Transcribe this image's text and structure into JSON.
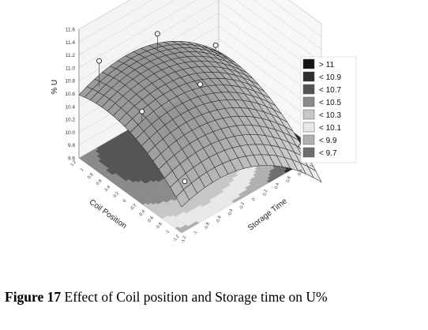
{
  "chart_data": {
    "type": "surface3d",
    "title": "",
    "xlabel": "Coil Position",
    "ylabel": "Storage Time",
    "zlabel": "% U",
    "x_ticks": [
      "1.2",
      "1",
      "0.8",
      "0.6",
      "0.4",
      "0.2",
      "0",
      "-0.2",
      "-0.4",
      "-0.6",
      "-0.8",
      "-1",
      "-1.2"
    ],
    "y_ticks": [
      "-1.2",
      "-1",
      "-0.8",
      "-0.6",
      "-0.4",
      "-0.2",
      "0",
      "0.2",
      "0.4",
      "0.6",
      "0.8",
      "1",
      "1.2"
    ],
    "z_ticks": [
      "9.6",
      "9.8",
      "10.0",
      "10.2",
      "10.4",
      "10.6",
      "10.8",
      "11.0",
      "11.2",
      "11.4",
      "11.6"
    ],
    "zlim": [
      9.6,
      11.6
    ],
    "grid": true,
    "legend": {
      "placement": "right",
      "entries": [
        {
          "label": "> 11",
          "color": "#151515"
        },
        {
          "label": "< 10.9",
          "color": "#2e2e2e"
        },
        {
          "label": "< 10.7",
          "color": "#545454"
        },
        {
          "label": "< 10.5",
          "color": "#8a8a8a"
        },
        {
          "label": "< 10.3",
          "color": "#c6c6c6"
        },
        {
          "label": "< 10.1",
          "color": "#e8e8e8"
        },
        {
          "label": "< 9.9",
          "color": "#b0b0b0"
        },
        {
          "label": "< 9.7",
          "color": "#6e6e6e"
        }
      ]
    },
    "design_points": [
      {
        "coil": -1,
        "storage": -1,
        "u": 11.1
      },
      {
        "coil": 1,
        "storage": -1,
        "u": 10.2
      },
      {
        "coil": -1,
        "storage": 1,
        "u": 10.3
      },
      {
        "coil": 1,
        "storage": 1,
        "u": 9.7
      },
      {
        "coil": 0,
        "storage": 0,
        "u": 10.7
      },
      {
        "coil": -1,
        "storage": 0,
        "u": 11.0
      },
      {
        "coil": 0,
        "storage": -1,
        "u": 10.8
      }
    ]
  },
  "caption": {
    "label": "Figure 17",
    "text": "Effect of Coil position and Storage time on U%"
  }
}
